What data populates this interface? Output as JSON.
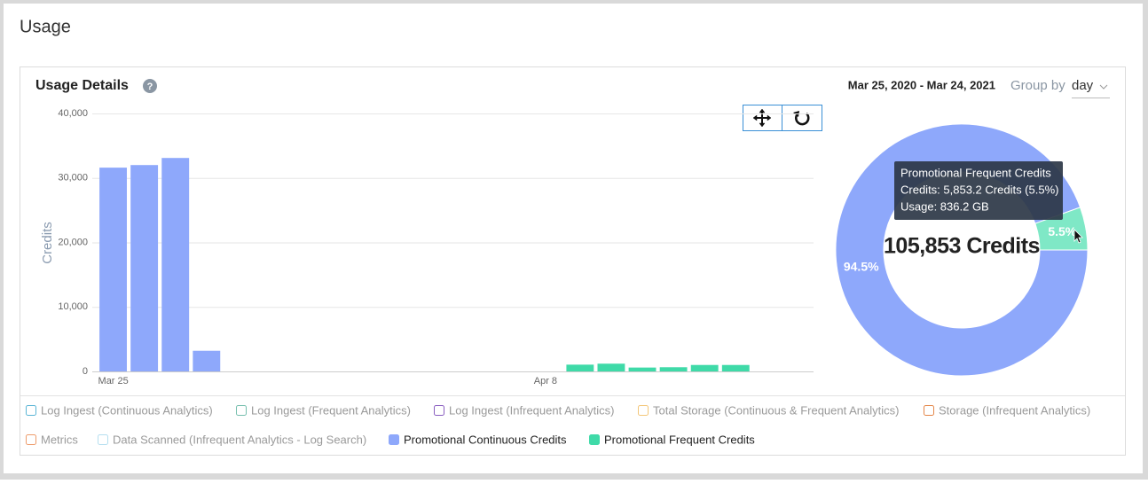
{
  "page": {
    "title": "Usage",
    "panel_title": "Usage Details",
    "help_icon": "?",
    "date_range": "Mar 25, 2020 - Mar 24, 2021",
    "group_by_label": "Group by",
    "group_by_value": "day"
  },
  "tooltip": {
    "title": "Promotional Frequent Credits",
    "line1": "Credits: 5,853.2 Credits (5.5%)",
    "line2": "Usage: 836.2 GB"
  },
  "chart_data": [
    {
      "type": "bar",
      "y_label": "Credits",
      "categories": [
        "Mar 25",
        null,
        null,
        null,
        null,
        null,
        null,
        null,
        null,
        null,
        null,
        null,
        null,
        null,
        "Apr 8",
        null,
        null,
        null,
        null,
        null,
        null,
        null,
        null
      ],
      "ylim": [
        0,
        40000
      ],
      "yticks": [
        0,
        {
          "value": 10000,
          "label": "10,000"
        },
        {
          "value": 20000,
          "label": "20,000"
        },
        {
          "value": 30000,
          "label": "30,000"
        },
        {
          "value": 40000,
          "label": "40,000"
        }
      ],
      "grid": true,
      "series": [
        {
          "name": "Log Ingest (Continuous Analytics)",
          "color": "#5cb6d6",
          "visible": false,
          "values": [
            null,
            null,
            null,
            null,
            null,
            null,
            null,
            null,
            null,
            null,
            null,
            null,
            null,
            null,
            null,
            null,
            null,
            null,
            null,
            null,
            null,
            null,
            null
          ]
        },
        {
          "name": "Log Ingest (Frequent Analytics)",
          "color": "#76bfae",
          "visible": false,
          "values": [
            null,
            null,
            null,
            null,
            null,
            null,
            null,
            null,
            null,
            null,
            null,
            null,
            null,
            null,
            null,
            null,
            null,
            null,
            null,
            null,
            null,
            null,
            null
          ]
        },
        {
          "name": "Log Ingest (Infrequent Analytics)",
          "color": "#8a5fc0",
          "visible": false,
          "values": [
            null,
            null,
            null,
            null,
            null,
            null,
            null,
            null,
            null,
            null,
            null,
            null,
            null,
            null,
            null,
            null,
            null,
            null,
            null,
            null,
            null,
            null,
            null
          ]
        },
        {
          "name": "Total Storage (Continuous & Frequent Analytics)",
          "color": "#f3c77a",
          "visible": false,
          "values": [
            null,
            null,
            null,
            null,
            null,
            null,
            null,
            null,
            null,
            null,
            null,
            null,
            null,
            null,
            null,
            null,
            null,
            null,
            null,
            null,
            null,
            null,
            null
          ]
        },
        {
          "name": "Storage (Infrequent Analytics)",
          "color": "#e4874a",
          "visible": false,
          "values": [
            null,
            null,
            null,
            null,
            null,
            null,
            null,
            null,
            null,
            null,
            null,
            null,
            null,
            null,
            null,
            null,
            null,
            null,
            null,
            null,
            null,
            null,
            null
          ]
        },
        {
          "name": "Metrics",
          "color": "#ee9c6c",
          "visible": false,
          "values": [
            null,
            null,
            null,
            null,
            null,
            null,
            null,
            null,
            null,
            null,
            null,
            null,
            null,
            null,
            null,
            null,
            null,
            null,
            null,
            null,
            null,
            null,
            null
          ]
        },
        {
          "name": "Data Scanned (Infrequent Analytics - Log Search)",
          "color": "#b6dff0",
          "visible": false,
          "values": [
            null,
            null,
            null,
            null,
            null,
            null,
            null,
            null,
            null,
            null,
            null,
            null,
            null,
            null,
            null,
            null,
            null,
            null,
            null,
            null,
            null,
            null,
            null
          ]
        },
        {
          "name": "Promotional Continuous Credits",
          "color": "#8ea8fb",
          "visible": true,
          "values": [
            31600,
            32000,
            33100,
            3200,
            null,
            null,
            null,
            null,
            null,
            null,
            null,
            null,
            null,
            null,
            null,
            null,
            null,
            null,
            null,
            null,
            null,
            null,
            null
          ]
        },
        {
          "name": "Promotional Frequent Credits",
          "color": "#3fdaa8",
          "visible": true,
          "values": [
            null,
            null,
            null,
            null,
            null,
            null,
            null,
            null,
            null,
            null,
            null,
            null,
            null,
            null,
            null,
            1050,
            1200,
            600,
            650,
            1000,
            1000,
            null,
            null
          ]
        }
      ]
    },
    {
      "type": "pie",
      "center_label": "105,853 Credits",
      "categories": [
        "Promotional Continuous Credits",
        "Promotional Frequent Credits"
      ],
      "values": [
        94.5,
        5.5
      ],
      "value_labels": [
        "94.5%",
        "5.5%"
      ],
      "colors": [
        "#8ea8fb",
        "#7fe8c6"
      ]
    }
  ]
}
